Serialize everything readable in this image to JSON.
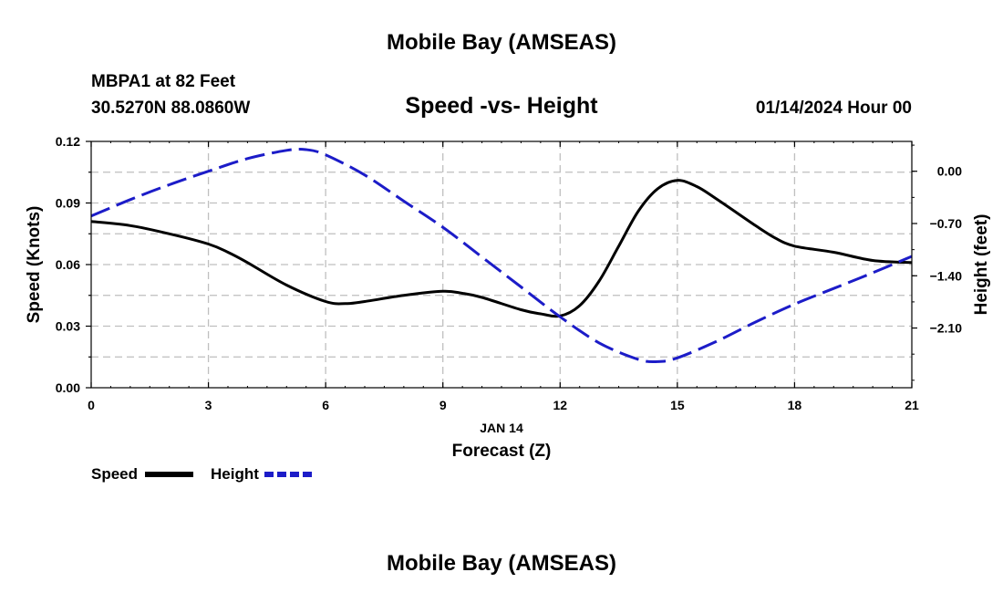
{
  "page_title": "Mobile Bay (AMSEAS)",
  "footer_title": "Mobile Bay (AMSEAS)",
  "station": {
    "name_line": "MBPA1 at 82 Feet",
    "coords_line": "30.5270N  88.0860W"
  },
  "datetime": "01/14/2024 Hour 00",
  "chart_data": {
    "type": "line",
    "title": "Speed -vs- Height",
    "xlabel_date": "JAN 14",
    "xlabel": "Forecast (Z)",
    "ylabel": "Speed (Knots)",
    "y2label": "Height (feet)",
    "xlim": [
      0,
      21
    ],
    "ylim": [
      0,
      0.12
    ],
    "y2lim": [
      -2.9,
      0.4
    ],
    "grid": true,
    "x_ticks": [
      0,
      3,
      6,
      9,
      12,
      15,
      18,
      21
    ],
    "x_tick_labels": [
      "0",
      "3",
      "6",
      "9",
      "12",
      "15",
      "18",
      "21"
    ],
    "y_ticks": [
      0.0,
      0.03,
      0.06,
      0.09,
      0.12
    ],
    "y_tick_labels": [
      "0.00",
      "0.03",
      "0.06",
      "0.09",
      "0.12"
    ],
    "y2_ticks": [
      0.0,
      -0.7,
      -1.4,
      -2.1
    ],
    "y2_tick_labels": [
      "0.00",
      "−0.70",
      "−1.40",
      "−2.10"
    ],
    "legend_position": "bottom-left",
    "series": [
      {
        "name": "Speed",
        "axis": "left",
        "color": "#000000",
        "style": "solid",
        "x": [
          0,
          1,
          2,
          3,
          3.5,
          4,
          5,
          6,
          6.5,
          7,
          8,
          9,
          9.5,
          10,
          11,
          11.5,
          12,
          12.5,
          13,
          13.5,
          14,
          14.5,
          15,
          15.5,
          16,
          17,
          17.5,
          18,
          19,
          20,
          21
        ],
        "values": [
          0.081,
          0.079,
          0.075,
          0.07,
          0.066,
          0.061,
          0.05,
          0.042,
          0.041,
          0.042,
          0.045,
          0.047,
          0.046,
          0.044,
          0.038,
          0.036,
          0.035,
          0.04,
          0.052,
          0.069,
          0.086,
          0.097,
          0.101,
          0.098,
          0.092,
          0.079,
          0.073,
          0.069,
          0.066,
          0.062,
          0.061
        ]
      },
      {
        "name": "Height",
        "axis": "right",
        "color": "#1c1cc8",
        "style": "dashed",
        "x": [
          0,
          1,
          2,
          3,
          4,
          5,
          5.5,
          6,
          7,
          8,
          9,
          10,
          11,
          12,
          13,
          14,
          14.5,
          15,
          16,
          17,
          18,
          19,
          20,
          21
        ],
        "values": [
          -0.6,
          -0.38,
          -0.18,
          0.0,
          0.17,
          0.28,
          0.29,
          0.22,
          -0.05,
          -0.4,
          -0.75,
          -1.15,
          -1.55,
          -1.95,
          -2.3,
          -2.52,
          -2.55,
          -2.5,
          -2.28,
          -2.02,
          -1.78,
          -1.57,
          -1.36,
          -1.14
        ]
      }
    ]
  }
}
